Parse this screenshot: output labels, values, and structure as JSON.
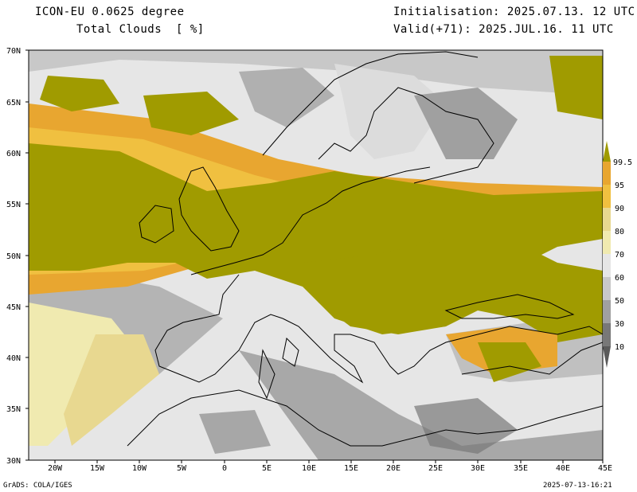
{
  "header": {
    "model": "ICON-EU 0.0625 degree",
    "variable": "Total Clouds  [ %]",
    "initialisation": "Initialisation: 2025.07.13. 12 UTC",
    "valid": "Valid(+71): 2025.JUL.16. 11 UTC"
  },
  "axes": {
    "lat_labels": [
      "70N",
      "65N",
      "60N",
      "55N",
      "50N",
      "45N",
      "40N",
      "35N",
      "30N"
    ],
    "lon_labels": [
      "20W",
      "15W",
      "10W",
      "5W",
      "0",
      "5E",
      "10E",
      "15E",
      "20E",
      "25E",
      "30E",
      "35E",
      "40E",
      "45E"
    ],
    "lat_range": [
      30,
      70
    ],
    "lon_range": [
      -23,
      45
    ]
  },
  "legend": {
    "labels": [
      "99.5",
      "95",
      "90",
      "80",
      "70",
      "60",
      "50",
      "30",
      "10"
    ],
    "colors": [
      "#a09b00",
      "#e8a630",
      "#f0c040",
      "#e8d890",
      "#f0eab0",
      "#e6e6e6",
      "#c8c8c8",
      "#a0a0a0",
      "#787878",
      "#5a5a5a"
    ]
  },
  "footer": {
    "software": "GrADS: COLA/IGES",
    "timestamp": "2025-07-13-16:21"
  }
}
